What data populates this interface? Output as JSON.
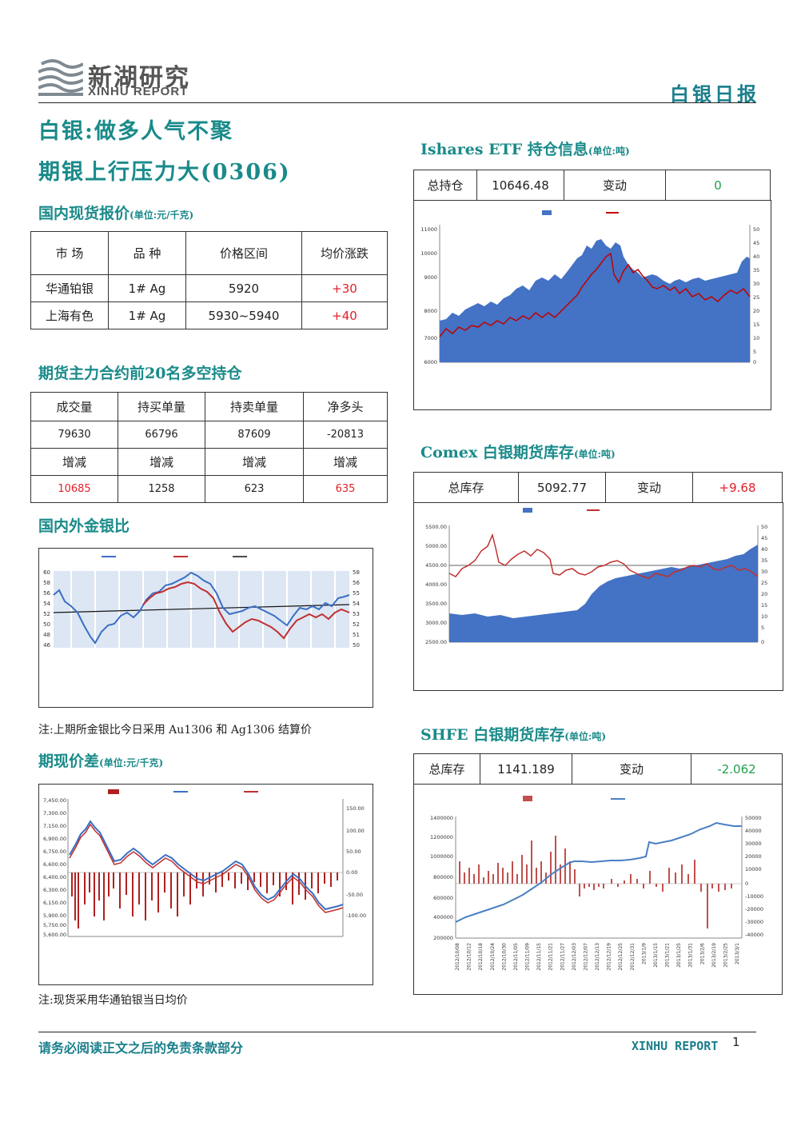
{
  "header": {
    "logo_cn": "新湖研究",
    "logo_en": "XINHU REPORT",
    "report_type": "白银日报"
  },
  "title": {
    "line1": "白银:做多人气不聚",
    "line2": "期银上行压力大(0306)"
  },
  "spot_price": {
    "title": "国内现货报价",
    "unit": "(单位:元/千克)",
    "headers": [
      "市 场",
      "品 种",
      "价格区间",
      "均价涨跌"
    ],
    "rows": [
      [
        "华通铂银",
        "1# Ag",
        "5920",
        "+30"
      ],
      [
        "上海有色",
        "1# Ag",
        "5930~5940",
        "+40"
      ]
    ]
  },
  "futures_top20": {
    "title": "期货主力合约前20名多空持仓",
    "headers": [
      "成交量",
      "持买单量",
      "持卖单量",
      "净多头"
    ],
    "values": [
      "79630",
      "66796",
      "87609",
      "-20813"
    ],
    "change_headers": [
      "增减",
      "增减",
      "增减",
      "增减"
    ],
    "changes": [
      "10685",
      "1258",
      "623",
      "635"
    ]
  },
  "gold_silver_ratio": {
    "title": "国内外金银比",
    "note": "注:上期所金银比今日采用 Au1306 和 Ag1306 结算价",
    "chart": {
      "type": "line",
      "left_axis": [
        "60",
        "58",
        "56",
        "54",
        "52",
        "50",
        "48",
        "46"
      ],
      "right_axis": [
        "58",
        "56",
        "55",
        "54",
        "53",
        "52",
        "51",
        "50"
      ]
    }
  },
  "basis": {
    "title": "期现价差",
    "unit": "(单位:元/千克)",
    "note": "注:现货采用华通铂银当日均价",
    "chart": {
      "type": "bar",
      "left_axis": [
        "7,450.00",
        "7,300.00",
        "7,150.00",
        "6,900.00",
        "6,750.00",
        "6,600.00",
        "6,400.00",
        "6,300.00",
        "6,150.00",
        "5,900.00",
        "5,750.00",
        "5,600.00"
      ],
      "right_axis": [
        "150.00",
        "100.00",
        "50.00",
        "0.00",
        "-50.00",
        "-100.00"
      ]
    }
  },
  "ishares": {
    "title": "Ishares ETF 持仓信息",
    "unit": "(单位:吨)",
    "labels": [
      "总持仓",
      "变动"
    ],
    "values": [
      "10646.48",
      "0"
    ],
    "chart": {
      "type": "area",
      "left_axis": [
        "11000",
        "10000",
        "9000",
        "8000",
        "7000",
        "6000"
      ],
      "right_axis": [
        "50",
        "45",
        "40",
        "35",
        "30",
        "25",
        "20",
        "15",
        "10",
        "5",
        "0"
      ]
    }
  },
  "comex": {
    "title": "Comex 白银期货库存",
    "unit": "(单位:吨)",
    "labels": [
      "总库存",
      "变动"
    ],
    "values": [
      "5092.77",
      "+9.68"
    ],
    "chart": {
      "type": "area",
      "left_axis": [
        "5500.00",
        "5000.00",
        "4500.00",
        "4000.00",
        "3500.00",
        "3000.00",
        "2500.00"
      ],
      "right_axis": [
        "50",
        "45",
        "40",
        "35",
        "30",
        "25",
        "20",
        "15",
        "10",
        "5",
        "0"
      ]
    }
  },
  "shfe": {
    "title": "SHFE 白银期货库存",
    "unit": "(单位:吨)",
    "labels": [
      "总库存",
      "变动"
    ],
    "values": [
      "1141.189",
      "-2.062"
    ],
    "chart": {
      "type": "bar",
      "left_axis": [
        "1400000",
        "1200000",
        "1000000",
        "800000",
        "600000",
        "400000",
        "200000"
      ],
      "right_axis": [
        "50000",
        "40000",
        "30000",
        "20000",
        "10000",
        "0",
        "-10000",
        "-20000",
        "-30000",
        "-40000"
      ],
      "x_ticks": [
        "2012/10/08",
        "2012/10/12",
        "2012/10/18",
        "2012/10/24",
        "2012/10/30",
        "2012/11/05",
        "2012/11/09",
        "2012/11/15",
        "2012/11/21",
        "2012/11/27",
        "2012/12/03",
        "2012/12/07",
        "2012/12/13",
        "2012/12/19",
        "2012/12/25",
        "2012/12/31",
        "2013/1/9",
        "2013/1/15",
        "2013/1/21",
        "2013/1/25",
        "2013/1/31",
        "2013/2/6",
        "2013/2/19",
        "2013/2/25",
        "2013/3/1"
      ]
    }
  },
  "footer": {
    "left": "请务必阅读正文之后的免责条款部分",
    "right": "XINHU REPORT",
    "page": "1"
  }
}
